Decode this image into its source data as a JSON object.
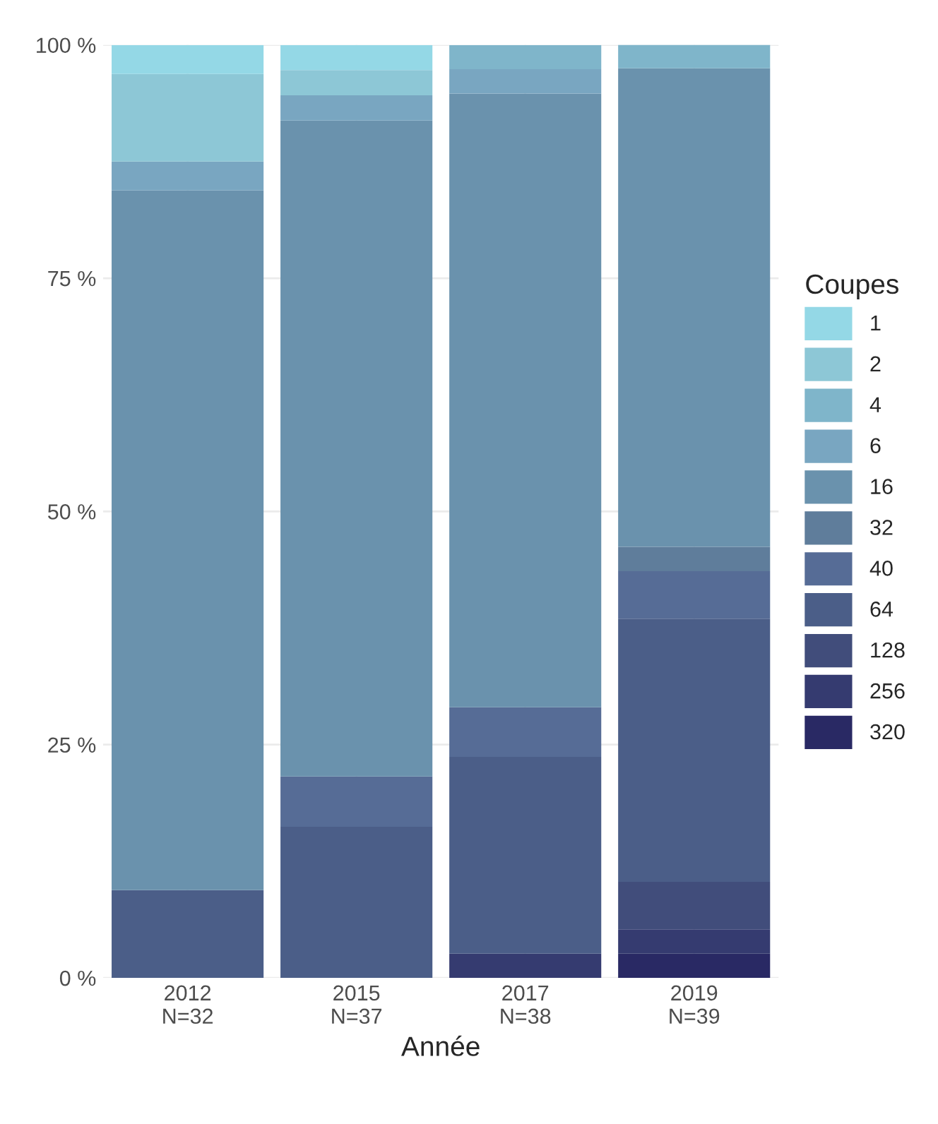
{
  "chart_data": {
    "type": "bar",
    "stacked": true,
    "xlabel": "Année",
    "legend_title": "Coupes",
    "legend": "right",
    "grid": true,
    "categories": [
      "2012\nN=32",
      "2015\nN=37",
      "2017\nN=38",
      "2019\nN=39"
    ],
    "ylim": [
      0,
      100
    ],
    "yticks": [
      {
        "value": 0,
        "label": "0 %"
      },
      {
        "value": 25,
        "label": "25 %"
      },
      {
        "value": 50,
        "label": "50 %"
      },
      {
        "value": 75,
        "label": "75 %"
      },
      {
        "value": 100,
        "label": "100 %"
      }
    ],
    "series": [
      {
        "name": "320",
        "color": "#292964",
        "values": [
          null,
          null,
          null,
          2.6
        ]
      },
      {
        "name": "256",
        "color": "#353b70",
        "values": [
          null,
          null,
          2.6,
          2.6
        ]
      },
      {
        "name": "128",
        "color": "#414d7b",
        "values": [
          null,
          null,
          null,
          5.1
        ]
      },
      {
        "name": "64",
        "color": "#4b5e88",
        "values": [
          9.4,
          16.2,
          21.1,
          28.2
        ]
      },
      {
        "name": "40",
        "color": "#566c96",
        "values": [
          null,
          5.4,
          5.3,
          5.1
        ]
      },
      {
        "name": "32",
        "color": "#5f7d9b",
        "values": [
          null,
          null,
          null,
          2.6
        ]
      },
      {
        "name": "16",
        "color": "#6a92ad",
        "values": [
          75.0,
          70.3,
          65.8,
          51.3
        ]
      },
      {
        "name": "6",
        "color": "#79a6c1",
        "values": [
          3.1,
          2.7,
          2.6,
          null
        ]
      },
      {
        "name": "4",
        "color": "#7fb5ca",
        "values": [
          null,
          null,
          2.6,
          2.6
        ]
      },
      {
        "name": "2",
        "color": "#8dc7d6",
        "values": [
          9.4,
          2.7,
          null,
          null
        ]
      },
      {
        "name": "1",
        "color": "#94d8e6",
        "values": [
          3.1,
          2.7,
          null,
          null
        ]
      }
    ]
  }
}
